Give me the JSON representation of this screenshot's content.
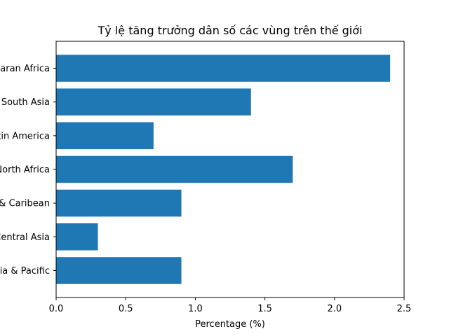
{
  "chart_data": {
    "type": "bar",
    "orientation": "horizontal",
    "title": "Tỷ lệ tăng trưởng dân số các vùng trên thế giới",
    "xlabel": "Percentage (%)",
    "ylabel": "",
    "categories": [
      "Sub-Saharan Africa",
      "South Asia",
      "Developing Latin America",
      "Middle East & North Africa",
      "Latin America & Caribean",
      "Europe & Central Asia",
      "East Asia & Pacific"
    ],
    "values": [
      2.4,
      1.4,
      0.7,
      1.7,
      0.9,
      0.3,
      0.9
    ],
    "xlim": [
      0,
      2.5
    ],
    "xticks": [
      0,
      0.5,
      1.0,
      1.5,
      2.0,
      2.5
    ],
    "xtick_labels": [
      "0.0",
      "0.5",
      "1.0",
      "1.5",
      "2.0",
      "2.5"
    ],
    "grid": false,
    "bar_color": "#1f77b4"
  }
}
